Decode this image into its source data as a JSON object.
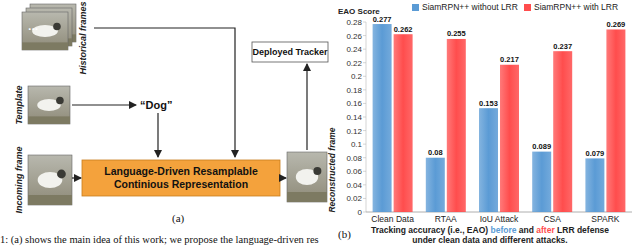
{
  "panel_a": {
    "label": "(a)",
    "historical": "Historical frames",
    "ellipsis": "...",
    "template": "Template",
    "query": "“Dog”",
    "incoming": "Incoming frame",
    "module": [
      "Language-Driven Resamplable",
      "Continious Representation"
    ],
    "reconstructed": "Reconstructed frame",
    "tracker": "Deployed Tracker"
  },
  "panel_b": {
    "label": "(b)",
    "caption": [
      "Tracking accuracy (i.e., EAO) ",
      "before",
      " and ",
      "after",
      " LRR defense",
      "under clean data and different attacks."
    ]
  },
  "figure_caption": "1:   (a) shows the main idea of this work; we propose the language-driven res",
  "chart_data": {
    "type": "bar",
    "y_label": "EAO Score",
    "categories": [
      "Clean Data",
      "RTAA",
      "IoU Attack",
      "CSA",
      "SPARK"
    ],
    "series": [
      {
        "name": "SiamRPN++ without LRR",
        "color": "#5b9bd5",
        "values": [
          0.277,
          0.08,
          0.153,
          0.089,
          0.079
        ]
      },
      {
        "name": "SiamRPN++ with LRR",
        "color": "#ff4d4d",
        "values": [
          0.262,
          0.255,
          0.217,
          0.237,
          0.269
        ]
      }
    ],
    "ylim": [
      0,
      0.28
    ],
    "yticks": [
      0,
      0.02,
      0.04,
      0.06,
      0.08,
      0.1,
      0.12,
      0.14,
      0.16,
      0.18,
      0.2,
      0.22,
      0.24,
      0.26,
      0.28
    ],
    "grid": false,
    "legend": "top",
    "data_labels": true
  }
}
